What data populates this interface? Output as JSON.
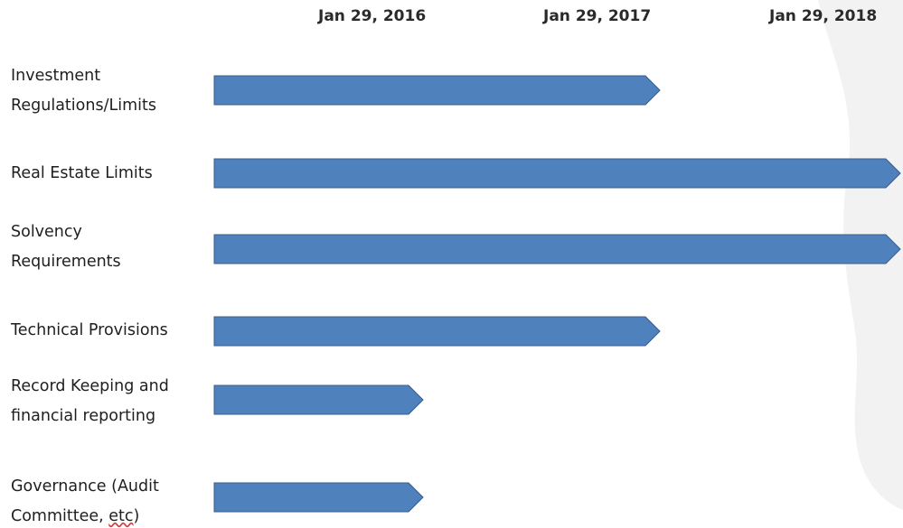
{
  "chart_data": {
    "type": "gantt",
    "start_date": "",
    "axis_ticks": [
      "Jan 29, 2016",
      "Jan 29, 2017",
      "Jan 29, 2018"
    ],
    "tasks": [
      {
        "label": "Investment Regulations/Limits",
        "end": "Jan 29, 2017",
        "continues": false
      },
      {
        "label": "Real Estate Limits",
        "end": "Jan 29, 2018",
        "continues": true
      },
      {
        "label": "Solvency Requirements",
        "end": "Jan 29, 2018",
        "continues": true
      },
      {
        "label": "Technical Provisions",
        "end": "Jan 29, 2017",
        "continues": false
      },
      {
        "label": "Record Keeping and financial reporting",
        "end": "Jan 29, 2016",
        "continues": false
      },
      {
        "label": "Governance (Audit Committee, etc)",
        "end": "Jan 29, 2016",
        "continues": false
      }
    ],
    "bar_color": "#4f81bd",
    "bar_border_color": "#385d8a"
  }
}
